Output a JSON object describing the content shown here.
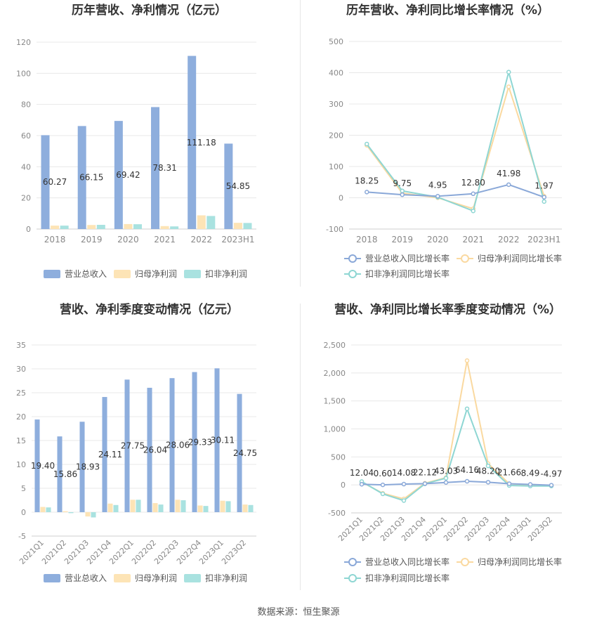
{
  "colors": {
    "revenue": "#8eaedd",
    "net_profit": "#fde4b6",
    "deducted_profit": "#a9e2e0",
    "revenue_line": "#8aa8d8",
    "net_line": "#fad9a0",
    "deducted_line": "#8ed6d3",
    "grid": "#e8e8e8",
    "axis": "#cfcfcf"
  },
  "footer": "数据来源：恒生聚源",
  "chart_data": [
    {
      "type": "bar",
      "title": "历年营收、净利情况（亿元）",
      "categories": [
        "2018",
        "2019",
        "2020",
        "2021",
        "2022",
        "2023H1"
      ],
      "ylim": [
        0,
        120
      ],
      "yticks": [
        0,
        20,
        40,
        60,
        80,
        100,
        120
      ],
      "ytick_labels": [
        "0",
        "20",
        "40",
        "60",
        "80",
        "100",
        "120"
      ],
      "series": [
        {
          "name": "营业总收入",
          "values": [
            60.27,
            66.15,
            69.42,
            78.31,
            111.18,
            54.85
          ],
          "labels": [
            "60.27",
            "66.15",
            "69.42",
            "78.31",
            "111.18",
            "54.85"
          ]
        },
        {
          "name": "归母净利润",
          "values": [
            2.2,
            2.6,
            3.2,
            1.9,
            8.8,
            4.0
          ]
        },
        {
          "name": "扣非净利润",
          "values": [
            2.2,
            2.7,
            3.1,
            1.7,
            8.4,
            3.9
          ]
        }
      ],
      "grid": true,
      "legend": "bottom"
    },
    {
      "type": "line",
      "title": "历年营收、净利同比增长率情况（%）",
      "categories": [
        "2018",
        "2019",
        "2020",
        "2021",
        "2022",
        "2023H1"
      ],
      "ylim": [
        -100,
        500
      ],
      "yticks": [
        -100,
        0,
        100,
        200,
        300,
        400,
        500
      ],
      "ytick_labels": [
        "-100",
        "0",
        "100",
        "200",
        "300",
        "400",
        "500"
      ],
      "series": [
        {
          "name": "营业总收入同比增长率",
          "values": [
            18.25,
            9.75,
            4.95,
            12.8,
            41.98,
            1.97
          ],
          "labels": [
            "18.25",
            "9.75",
            "4.95",
            "12.80",
            "41.98",
            "1.97"
          ]
        },
        {
          "name": "归母净利润同比增长率",
          "values": [
            168,
            15,
            0,
            -35,
            355,
            5
          ]
        },
        {
          "name": "扣非净利润同比增长率",
          "values": [
            172,
            22,
            2,
            -42,
            402,
            -12
          ]
        }
      ],
      "grid": true,
      "legend": "bottom"
    },
    {
      "type": "bar",
      "title": "营收、净利季度变动情况（亿元）",
      "categories": [
        "2021Q1",
        "2021Q2",
        "2021Q3",
        "2021Q4",
        "2022Q1",
        "2022Q2",
        "2022Q3",
        "2022Q4",
        "2023Q1",
        "2023Q2"
      ],
      "ylim": [
        -5,
        35
      ],
      "yticks": [
        -5,
        0,
        5,
        10,
        15,
        20,
        25,
        30,
        35
      ],
      "ytick_labels": [
        "-5",
        "0",
        "5",
        "10",
        "15",
        "20",
        "25",
        "30",
        "35"
      ],
      "series": [
        {
          "name": "营业总收入",
          "values": [
            19.4,
            15.86,
            18.93,
            24.11,
            27.75,
            26.04,
            28.06,
            29.33,
            30.11,
            24.75
          ],
          "labels": [
            "19.40",
            "15.86",
            "18.93",
            "24.11",
            "27.75",
            "26.04",
            "28.06",
            "29.33",
            "30.11",
            "24.75"
          ]
        },
        {
          "name": "归母净利润",
          "values": [
            1.1,
            0.2,
            -0.9,
            1.8,
            2.6,
            1.9,
            2.6,
            1.4,
            2.4,
            1.6
          ]
        },
        {
          "name": "扣非净利润",
          "values": [
            1.0,
            -0.2,
            -1.1,
            1.5,
            2.6,
            1.6,
            2.5,
            1.3,
            2.3,
            1.5
          ]
        }
      ],
      "grid": true,
      "legend": "bottom"
    },
    {
      "type": "line",
      "title": "营收、净利同比增长率季度变动情况（%）",
      "categories": [
        "2021Q1",
        "2021Q2",
        "2021Q3",
        "2021Q4",
        "2022Q1",
        "2022Q2",
        "2022Q3",
        "2022Q4",
        "2023Q1",
        "2023Q2"
      ],
      "ylim": [
        -500,
        2500
      ],
      "yticks": [
        -500,
        0,
        500,
        1000,
        1500,
        2000,
        2500
      ],
      "ytick_labels": [
        "-500",
        "0",
        "500",
        "1,000",
        "1,500",
        "2,000",
        "2,500"
      ],
      "series": [
        {
          "name": "营业总收入同比增长率",
          "values": [
            12.04,
            0.6,
            14.08,
            22.12,
            43.03,
            64.16,
            48.2,
            21.66,
            8.49,
            -4.97
          ],
          "labels": [
            "12.04",
            "0.60",
            "14.08",
            "22.12",
            "43.03",
            "64.16",
            "48.20",
            "21.66",
            "8.49",
            "-4.97"
          ]
        },
        {
          "name": "归母净利润同比增长率",
          "values": [
            50,
            -150,
            -250,
            30,
            130,
            2220,
            380,
            20,
            0,
            -10
          ]
        },
        {
          "name": "扣非净利润同比增长率",
          "values": [
            60,
            -160,
            -280,
            20,
            120,
            1360,
            340,
            -10,
            -20,
            -20
          ]
        }
      ],
      "grid": true,
      "legend": "bottom"
    }
  ]
}
